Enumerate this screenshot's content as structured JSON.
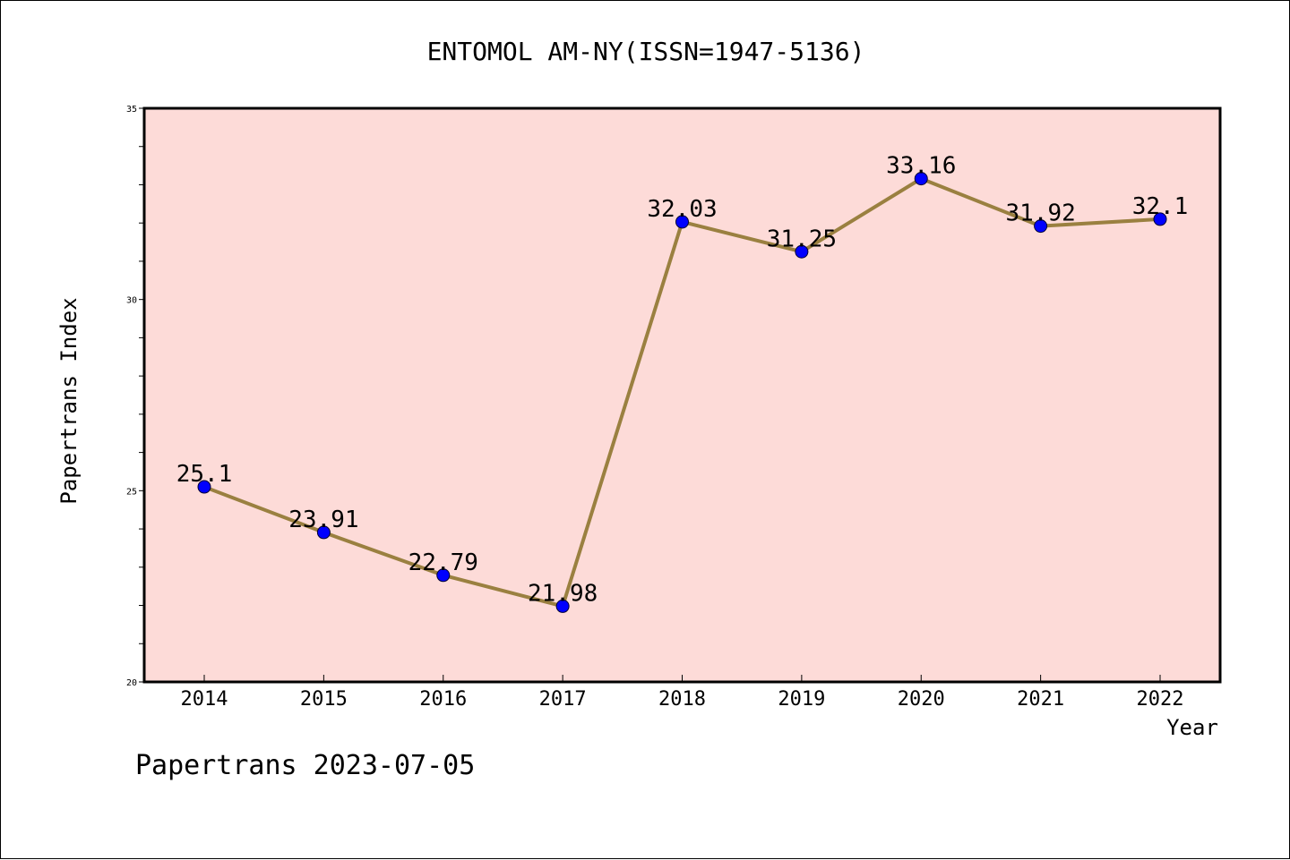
{
  "chart_data": {
    "type": "line",
    "title": "ENTOMOL AM-NY(ISSN=1947-5136)",
    "xlabel": "Year",
    "ylabel": "Papertrans Index",
    "footer": "Papertrans 2023-07-05",
    "categories": [
      "2014",
      "2015",
      "2016",
      "2017",
      "2018",
      "2019",
      "2020",
      "2021",
      "2022"
    ],
    "series": [
      {
        "values": [
          25.1,
          23.91,
          22.79,
          21.98,
          32.03,
          31.25,
          33.16,
          31.92,
          32.1
        ],
        "labels": [
          "25.1",
          "23.91",
          "22.79",
          "21.98",
          "32.03",
          "31.25",
          "33.16",
          "31.92",
          "32.1"
        ]
      }
    ],
    "ylim": [
      20,
      35
    ],
    "yticks": [
      "20",
      "25",
      "30",
      "35"
    ],
    "grid": false,
    "colors": {
      "plot_background": "#fddbd8",
      "line": "#9a8040",
      "marker": "#0000ff"
    }
  }
}
